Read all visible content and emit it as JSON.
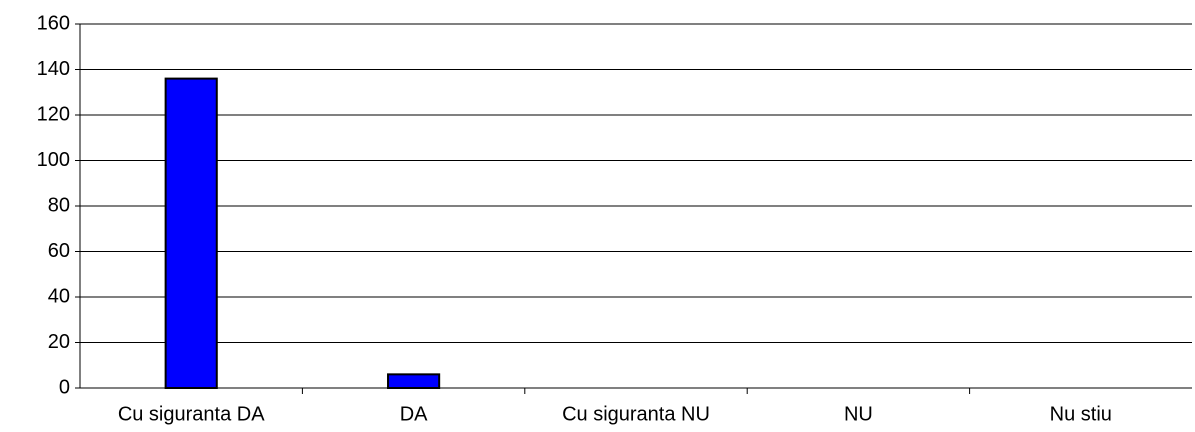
{
  "chart_data": {
    "type": "bar",
    "categories": [
      "Cu siguranta DA",
      "DA",
      "Cu siguranta NU",
      "NU",
      "Nu stiu"
    ],
    "values": [
      136,
      6,
      0,
      0,
      0
    ],
    "color": "#0000ff",
    "ylim": [
      0,
      160
    ],
    "yticks": [
      0,
      20,
      40,
      60,
      80,
      100,
      120,
      140,
      160
    ],
    "grid": true
  }
}
